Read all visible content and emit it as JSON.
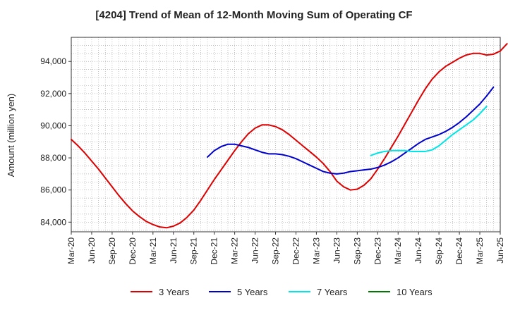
{
  "chart_data": {
    "type": "line",
    "title": "[4204]  Trend of Mean of 12-Month Moving Sum of Operating CF",
    "xlabel": "",
    "ylabel": "Amount (million yen)",
    "ylim": [
      83400,
      95500
    ],
    "yticks": [
      84000,
      86000,
      88000,
      90000,
      92000,
      94000
    ],
    "ytick_labels": [
      "84,000",
      "86,000",
      "88,000",
      "90,000",
      "92,000",
      "94,000"
    ],
    "x_start": "2020-03",
    "x_end": "2025-06",
    "xtick_labels": [
      "Mar-20",
      "Jun-20",
      "Sep-20",
      "Dec-20",
      "Mar-21",
      "Jun-21",
      "Sep-21",
      "Dec-21",
      "Mar-22",
      "Jun-22",
      "Sep-22",
      "Dec-22",
      "Mar-23",
      "Jun-23",
      "Sep-23",
      "Dec-23",
      "Mar-24",
      "Jun-24",
      "Sep-24",
      "Dec-24",
      "Mar-25",
      "Jun-25"
    ],
    "grid": true,
    "legend_position": "bottom",
    "series": [
      {
        "name": "3 Years",
        "color": "#dd0000",
        "start": "2020-03",
        "values": [
          89150,
          88750,
          88300,
          87800,
          87300,
          86750,
          86200,
          85650,
          85150,
          84700,
          84350,
          84050,
          83850,
          83700,
          83650,
          83750,
          83950,
          84300,
          84750,
          85350,
          86000,
          86650,
          87250,
          87850,
          88450,
          89000,
          89500,
          89850,
          90050,
          90050,
          89950,
          89750,
          89450,
          89100,
          88750,
          88400,
          88050,
          87650,
          87150,
          86550,
          86200,
          86000,
          86050,
          86300,
          86700,
          87300,
          87950,
          88650,
          89350,
          90100,
          90850,
          91600,
          92300,
          92900,
          93350,
          93700,
          93950,
          94200,
          94400,
          94500,
          94500,
          94400,
          94450,
          94650,
          95100
        ]
      },
      {
        "name": "5 Years",
        "color": "#0000cc",
        "start": "2021-11",
        "values": [
          88050,
          88450,
          88700,
          88850,
          88850,
          88750,
          88650,
          88500,
          88350,
          88250,
          88250,
          88200,
          88100,
          87950,
          87750,
          87550,
          87350,
          87150,
          87050,
          87000,
          87050,
          87150,
          87200,
          87250,
          87300,
          87400,
          87550,
          87750,
          88000,
          88300,
          88600,
          88900,
          89150,
          89300,
          89450,
          89650,
          89900,
          90200,
          90550,
          90950,
          91350,
          91850,
          92400
        ]
      },
      {
        "name": "7 Years",
        "color": "#00e5e5",
        "start": "2023-11",
        "values": [
          88150,
          88300,
          88400,
          88450,
          88450,
          88450,
          88400,
          88400,
          88400,
          88500,
          88750,
          89100,
          89450,
          89750,
          90050,
          90350,
          90750,
          91200
        ]
      },
      {
        "name": "10 Years",
        "color": "#007700",
        "start": "2025-03",
        "values": []
      }
    ]
  }
}
